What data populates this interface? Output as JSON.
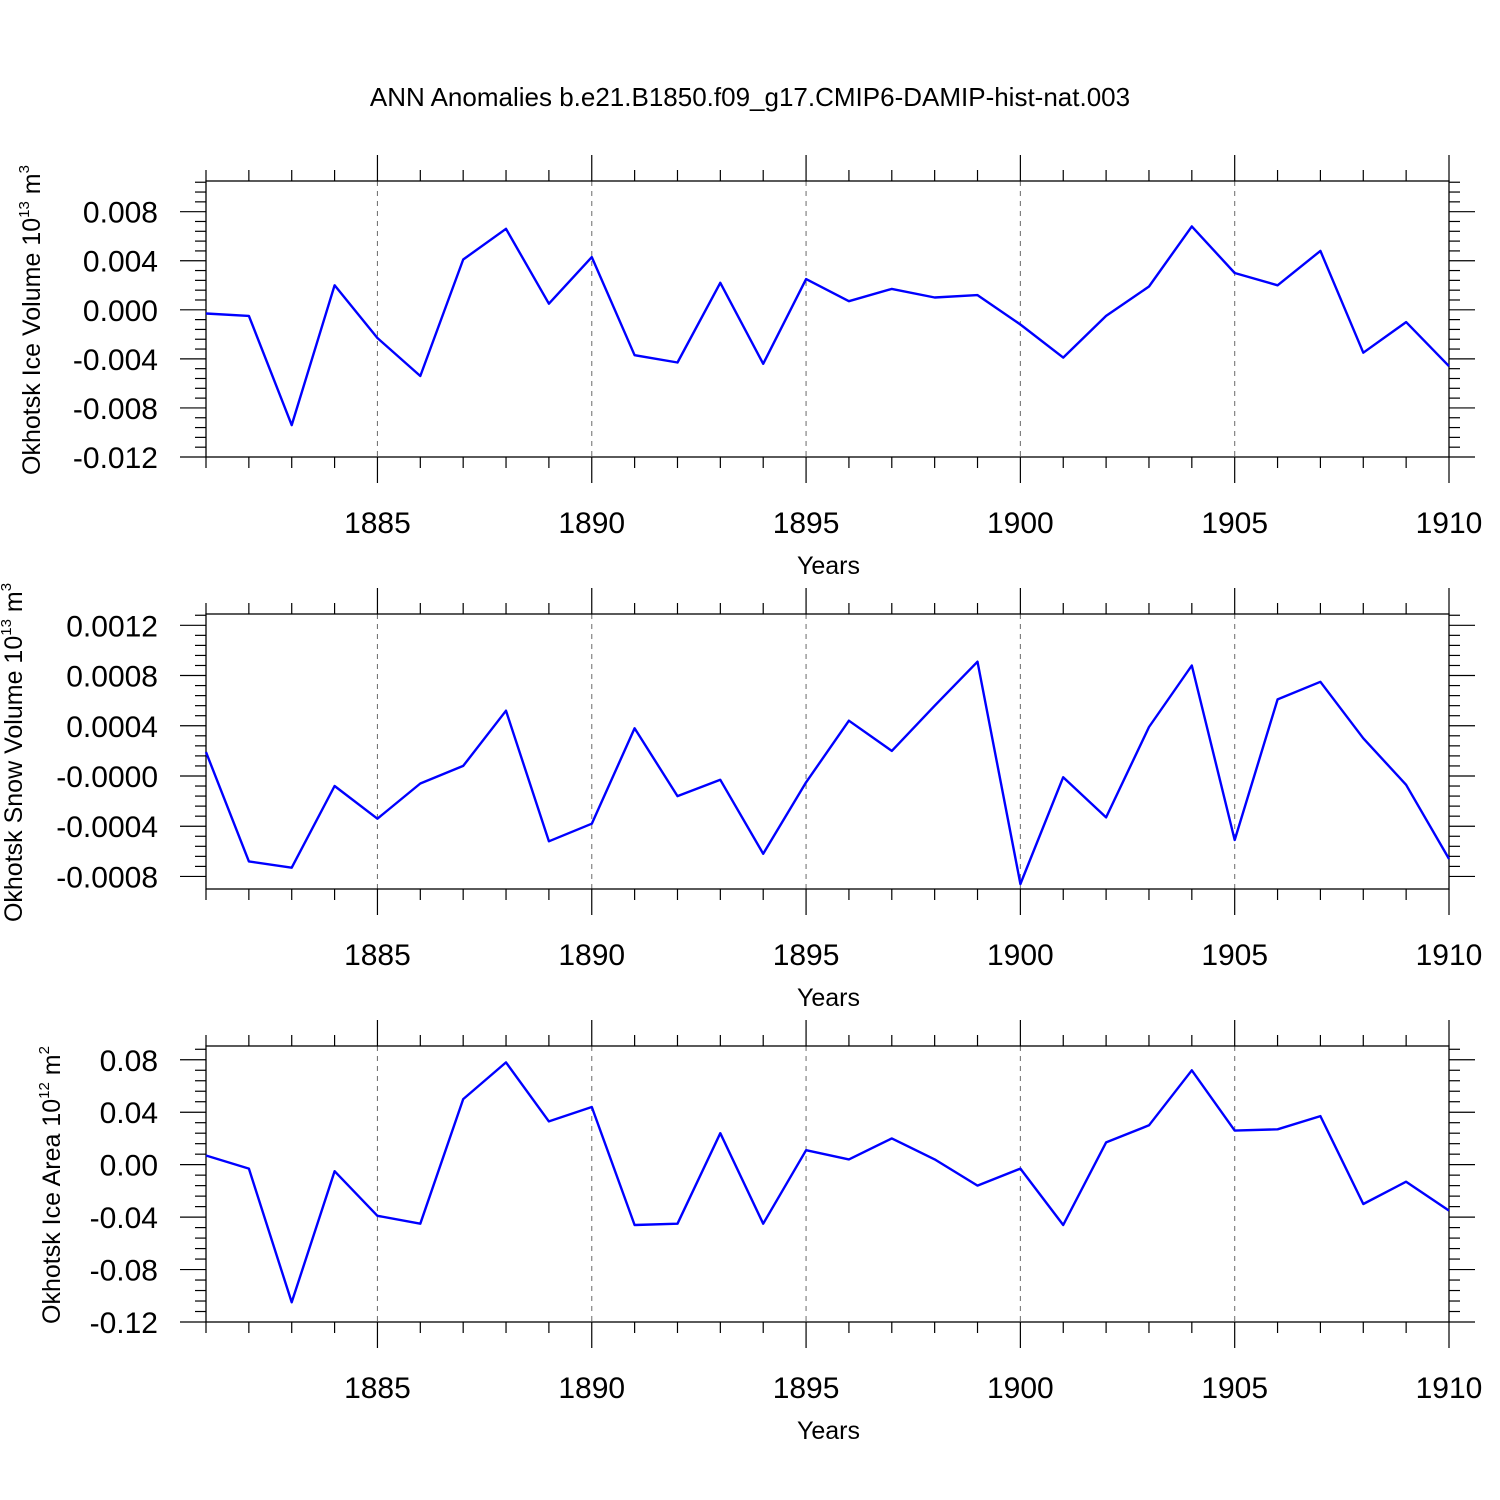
{
  "title": "ANN Anomalies b.e21.B1850.f09_g17.CMIP6-DAMIP-hist-nat.003",
  "colors": {
    "line": "#0000ff",
    "grid": "#777777"
  },
  "chart_data": [
    {
      "type": "line",
      "ylabel": "Okhotsk Ice Volume 10",
      "ylabel_exp": "13",
      "ylabel_unit": " m",
      "ylabel_unit_exp": "3",
      "xlabel": "Years",
      "xlim": [
        1881,
        1910
      ],
      "ylim": [
        -0.012,
        0.0105
      ],
      "yticks": [
        -0.012,
        -0.008,
        -0.004,
        0.0,
        0.004,
        0.008
      ],
      "ytick_labels": [
        "-0.012",
        "-0.008",
        "-0.004",
        "0.000",
        "0.004",
        "0.008"
      ],
      "xticks": [
        1885,
        1890,
        1895,
        1900,
        1905,
        1910
      ],
      "xtick_labels": [
        "1885",
        "1890",
        "1895",
        "1900",
        "1905",
        "1910"
      ],
      "grid_x": true,
      "x": [
        1881,
        1882,
        1883,
        1884,
        1885,
        1886,
        1887,
        1888,
        1889,
        1890,
        1891,
        1892,
        1893,
        1894,
        1895,
        1896,
        1897,
        1898,
        1899,
        1900,
        1901,
        1902,
        1903,
        1904,
        1905,
        1906,
        1907,
        1908,
        1909,
        1910
      ],
      "series": [
        {
          "values": [
            -0.0003,
            -0.0005,
            -0.0094,
            0.002,
            -0.0023,
            -0.0054,
            0.0041,
            0.0066,
            0.0005,
            0.0043,
            -0.0037,
            -0.0043,
            0.0022,
            -0.0044,
            0.0025,
            0.0007,
            0.0017,
            0.001,
            0.0012,
            -0.0012,
            -0.0039,
            -0.0005,
            0.0019,
            0.0068,
            0.003,
            0.002,
            0.0048,
            -0.0035,
            -0.001,
            -0.0046
          ]
        }
      ]
    },
    {
      "type": "line",
      "ylabel": "Okhotsk Snow Volume 10",
      "ylabel_exp": "13",
      "ylabel_unit": " m",
      "ylabel_unit_exp": "3",
      "xlabel": "Years",
      "xlim": [
        1881,
        1910
      ],
      "ylim": [
        -0.0009,
        0.00129
      ],
      "yticks": [
        -0.0008,
        -0.0004,
        0.0,
        0.0004,
        0.0008,
        0.0012
      ],
      "ytick_labels": [
        "-0.0008",
        "-0.0004",
        "-0.0000",
        "0.0004",
        "0.0008",
        "0.0012"
      ],
      "xticks": [
        1885,
        1890,
        1895,
        1900,
        1905,
        1910
      ],
      "xtick_labels": [
        "1885",
        "1890",
        "1895",
        "1900",
        "1905",
        "1910"
      ],
      "grid_x": true,
      "x": [
        1881,
        1882,
        1883,
        1884,
        1885,
        1886,
        1887,
        1888,
        1889,
        1890,
        1891,
        1892,
        1893,
        1894,
        1895,
        1896,
        1897,
        1898,
        1899,
        1900,
        1901,
        1902,
        1903,
        1904,
        1905,
        1906,
        1907,
        1908,
        1909,
        1910
      ],
      "series": [
        {
          "values": [
            0.00019,
            -0.00068,
            -0.00073,
            -8e-05,
            -0.00034,
            -6e-05,
            8e-05,
            0.00052,
            -0.00052,
            -0.00038,
            0.00038,
            -0.00016,
            -3e-05,
            -0.00062,
            -5e-05,
            0.00044,
            0.0002,
            0.00056,
            0.00091,
            -0.00086,
            -1e-05,
            -0.00033,
            0.00039,
            0.00088,
            -0.00051,
            0.00061,
            0.00075,
            0.0003,
            -7e-05,
            -0.00066
          ]
        }
      ]
    },
    {
      "type": "line",
      "ylabel": "Okhotsk Ice Area 10",
      "ylabel_exp": "12",
      "ylabel_unit": " m",
      "ylabel_unit_exp": "2",
      "xlabel": "Years",
      "xlim": [
        1881,
        1910
      ],
      "ylim": [
        -0.12,
        0.0905
      ],
      "yticks": [
        -0.12,
        -0.08,
        -0.04,
        0.0,
        0.04,
        0.08
      ],
      "ytick_labels": [
        "-0.12",
        "-0.08",
        "-0.04",
        "0.00",
        "0.04",
        "0.08"
      ],
      "xticks": [
        1885,
        1890,
        1895,
        1900,
        1905,
        1910
      ],
      "xtick_labels": [
        "1885",
        "1890",
        "1895",
        "1900",
        "1905",
        "1910"
      ],
      "grid_x": true,
      "x": [
        1881,
        1882,
        1883,
        1884,
        1885,
        1886,
        1887,
        1888,
        1889,
        1890,
        1891,
        1892,
        1893,
        1894,
        1895,
        1896,
        1897,
        1898,
        1899,
        1900,
        1901,
        1902,
        1903,
        1904,
        1905,
        1906,
        1907,
        1908,
        1909,
        1910
      ],
      "series": [
        {
          "values": [
            0.007,
            -0.003,
            -0.105,
            -0.005,
            -0.039,
            -0.045,
            0.05,
            0.078,
            0.033,
            0.044,
            -0.046,
            -0.045,
            0.024,
            -0.045,
            0.011,
            0.004,
            0.02,
            0.004,
            -0.016,
            -0.003,
            -0.046,
            0.017,
            0.03,
            0.072,
            0.026,
            0.027,
            0.037,
            -0.03,
            -0.013,
            -0.035
          ]
        }
      ]
    }
  ]
}
